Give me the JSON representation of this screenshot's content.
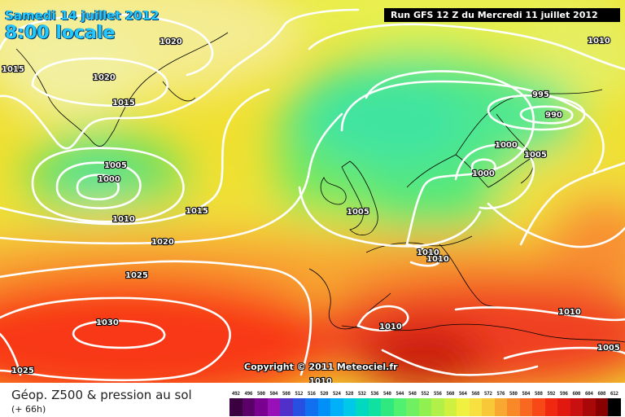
{
  "header": {
    "date": "Samedi 14 juillet 2012",
    "local_time": "8:00 locale",
    "run_info": "Run GFS 12 Z du Mercredi 11 juillet 2012"
  },
  "footer": {
    "title": "Géop. Z500 & pression au sol",
    "forecast_step": "(+ 66h)",
    "copyright": "Copyright © 2011 Meteociel.fr"
  },
  "legend": {
    "labels": [
      "492",
      "496",
      "500",
      "504",
      "508",
      "512",
      "516",
      "520",
      "524",
      "528",
      "532",
      "536",
      "540",
      "544",
      "548",
      "552",
      "556",
      "560",
      "564",
      "568",
      "572",
      "576",
      "580",
      "584",
      "588",
      "592",
      "596",
      "600",
      "604",
      "608",
      "612"
    ],
    "colors": [
      "#3a0040",
      "#5a0068",
      "#7a0090",
      "#9a10b8",
      "#5030c8",
      "#2850e0",
      "#1070f0",
      "#0090f8",
      "#00b0f8",
      "#00c8e8",
      "#00d8c0",
      "#10e0a0",
      "#30e880",
      "#50f070",
      "#70f060",
      "#90f050",
      "#b0f048",
      "#d0f040",
      "#f0f040",
      "#f8e040",
      "#f8c838",
      "#f8a830",
      "#f88828",
      "#f86820",
      "#f84818",
      "#f02810",
      "#e01810",
      "#c81010",
      "#a80808",
      "#880000",
      "#000000"
    ]
  },
  "isobars": {
    "labels": [
      "1020",
      "1015",
      "1020",
      "1015",
      "1005",
      "1000",
      "1010",
      "1015",
      "1020",
      "1025",
      "1030",
      "1025",
      "995",
      "990",
      "1010",
      "1000",
      "1005",
      "1000",
      "1005",
      "1010",
      "1010",
      "1010",
      "1010",
      "1005",
      "1010"
    ]
  }
}
